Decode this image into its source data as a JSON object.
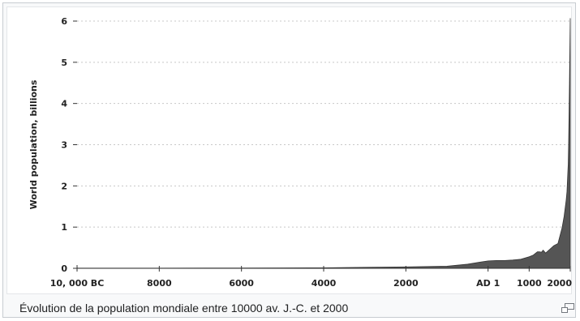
{
  "caption": "Évolution de la population mondiale entre 10000 av. J.-C. et 2000",
  "icons": {
    "magnify": "enlarge-icon"
  },
  "colors": {
    "area_fill": "#555555",
    "grid": "#c8c8c8",
    "axis": "#333333"
  },
  "chart_data": {
    "type": "area",
    "title": "",
    "xlabel": "",
    "ylabel": "World population, billions",
    "xlim": [
      -10000,
      2000
    ],
    "ylim": [
      0,
      6
    ],
    "y_ticks": [
      "0",
      "1",
      "2",
      "3",
      "4",
      "5",
      "6"
    ],
    "x_ticks": [
      {
        "value": -10000,
        "label": "10, 000 BC"
      },
      {
        "value": -8000,
        "label": "8000"
      },
      {
        "value": -6000,
        "label": "6000"
      },
      {
        "value": -4000,
        "label": "4000"
      },
      {
        "value": -2000,
        "label": "2000"
      },
      {
        "value": 0,
        "label": "AD 1"
      },
      {
        "value": 1000,
        "label": "1000"
      },
      {
        "value": 2000,
        "label": "2000"
      }
    ],
    "grid": "horizontal dashed",
    "series": [
      {
        "x": [
          -10000,
          -8000,
          -6000,
          -5000,
          -4000,
          -3000,
          -2000,
          -1000,
          -500,
          -200,
          0,
          200,
          400,
          600,
          800,
          1000,
          1100,
          1200,
          1250,
          1300,
          1340,
          1400,
          1500,
          1600,
          1700,
          1750,
          1800,
          1850,
          1900,
          1920,
          1940,
          1950,
          1960,
          1970,
          1980,
          1990,
          2000
        ],
        "y": [
          0.004,
          0.005,
          0.007,
          0.009,
          0.012,
          0.025,
          0.035,
          0.05,
          0.1,
          0.15,
          0.18,
          0.19,
          0.19,
          0.2,
          0.22,
          0.28,
          0.32,
          0.4,
          0.4,
          0.39,
          0.44,
          0.37,
          0.46,
          0.55,
          0.6,
          0.79,
          0.98,
          1.26,
          1.65,
          1.86,
          2.3,
          2.52,
          3.02,
          3.7,
          4.44,
          5.27,
          6.07
        ]
      }
    ]
  }
}
